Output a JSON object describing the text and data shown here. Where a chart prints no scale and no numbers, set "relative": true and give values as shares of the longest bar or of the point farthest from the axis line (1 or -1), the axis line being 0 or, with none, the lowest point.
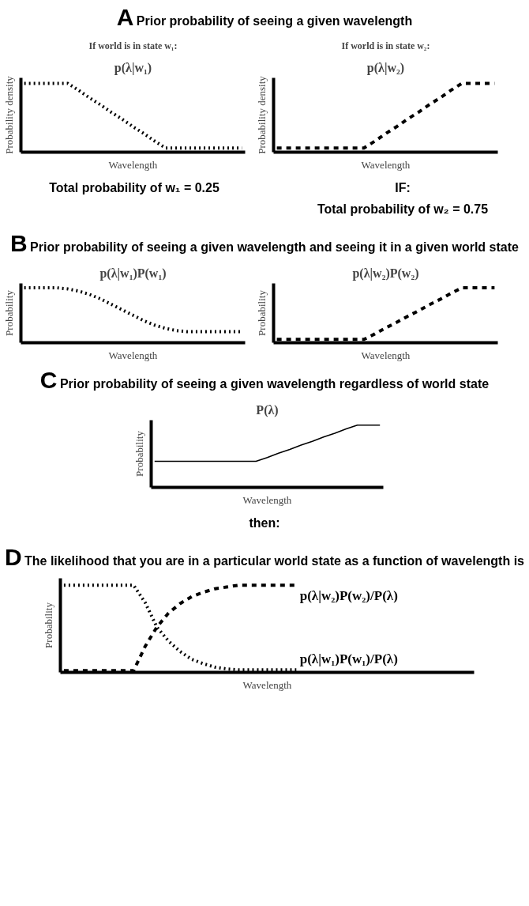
{
  "chart_data": [
    {
      "type": "line",
      "relative": true,
      "title": "p(λ|w₁)",
      "subtitle": "If world is in state w₁:",
      "xlabel": "Wavelength",
      "ylabel": "Probability density",
      "annotations": [
        "A",
        "Prior probability of seeing a given wavelength",
        "Total probability of w₁ = 0.25"
      ],
      "categories": [
        null,
        null,
        null,
        null,
        null,
        null,
        null,
        null,
        null,
        null,
        null,
        null,
        null,
        null,
        null,
        null,
        null,
        null,
        null,
        null,
        null
      ],
      "tick_labels": false,
      "grid": false,
      "series": [
        {
          "color": "#000000",
          "line_style": "dotted",
          "values": [
            1,
            1,
            1,
            1,
            1,
            0.9,
            0.79,
            0.69,
            0.58,
            0.48,
            0.37,
            0.27,
            0.16,
            0.06,
            0.06,
            0.06,
            0.06,
            0.06,
            0.06,
            0.06,
            0.06
          ]
        }
      ]
    },
    {
      "type": "line",
      "relative": true,
      "title": "p(λ|w₂)",
      "subtitle": "If world is in state w₂:",
      "xlabel": "Wavelength",
      "ylabel": "Probability density",
      "annotations": [
        "IF:",
        "Total probability of w₂ = 0.75"
      ],
      "categories": [
        null,
        null,
        null,
        null,
        null,
        null,
        null,
        null,
        null,
        null,
        null,
        null,
        null,
        null,
        null,
        null,
        null,
        null,
        null,
        null,
        null
      ],
      "tick_labels": false,
      "grid": false,
      "series": [
        {
          "color": "#000000",
          "line_style": "dashed",
          "values": [
            0.06,
            0.06,
            0.06,
            0.06,
            0.06,
            0.06,
            0.06,
            0.06,
            0.06,
            0.16,
            0.27,
            0.37,
            0.48,
            0.58,
            0.69,
            0.79,
            0.9,
            1,
            1,
            1,
            1
          ]
        }
      ]
    },
    {
      "type": "line",
      "relative": true,
      "title": "p(λ|w₁)P(w₁)",
      "xlabel": "Wavelength",
      "ylabel": "Probability",
      "annotations": [
        "B",
        "Prior probability of seeing a given wavelength and seeing it in a given world state"
      ],
      "categories": [
        null,
        null,
        null,
        null,
        null,
        null,
        null,
        null,
        null,
        null,
        null,
        null,
        null,
        null,
        null,
        null,
        null,
        null,
        null,
        null,
        null
      ],
      "tick_labels": false,
      "grid": false,
      "series": [
        {
          "color": "#000000",
          "line_style": "dotted",
          "values": [
            1,
            1,
            1,
            1,
            0.98,
            0.94,
            0.88,
            0.8,
            0.7,
            0.6,
            0.5,
            0.4,
            0.32,
            0.26,
            0.22,
            0.2,
            0.2,
            0.2,
            0.2,
            0.2,
            0.2
          ]
        }
      ]
    },
    {
      "type": "line",
      "relative": true,
      "title": "p(λ|w₂)P(w₂)",
      "xlabel": "Wavelength",
      "ylabel": "Probability",
      "categories": [
        null,
        null,
        null,
        null,
        null,
        null,
        null,
        null,
        null,
        null,
        null,
        null,
        null,
        null,
        null,
        null,
        null,
        null,
        null,
        null,
        null
      ],
      "tick_labels": false,
      "grid": false,
      "series": [
        {
          "color": "#000000",
          "line_style": "dashed",
          "values": [
            0.06,
            0.06,
            0.06,
            0.06,
            0.06,
            0.06,
            0.06,
            0.06,
            0.06,
            0.16,
            0.27,
            0.37,
            0.48,
            0.58,
            0.69,
            0.79,
            0.9,
            1,
            1,
            1,
            1
          ]
        }
      ]
    },
    {
      "type": "line",
      "relative": true,
      "title": "P(λ)",
      "xlabel": "Wavelength",
      "ylabel": "Probability",
      "annotations": [
        "C",
        "Prior probability of seeing a given wavelength regardless of world state",
        "then:"
      ],
      "categories": [
        null,
        null,
        null,
        null,
        null,
        null,
        null,
        null,
        null,
        null,
        null,
        null,
        null,
        null,
        null,
        null,
        null,
        null,
        null,
        null,
        null
      ],
      "tick_labels": false,
      "grid": false,
      "series": [
        {
          "color": "#000000",
          "line_style": "solid",
          "values": [
            0.42,
            0.42,
            0.42,
            0.42,
            0.42,
            0.42,
            0.42,
            0.42,
            0.42,
            0.42,
            0.48,
            0.55,
            0.61,
            0.68,
            0.74,
            0.81,
            0.87,
            0.94,
            1,
            1,
            1
          ]
        }
      ]
    },
    {
      "type": "line",
      "relative": true,
      "xlabel": "Wavelength",
      "ylabel": "Probability",
      "annotations": [
        "D",
        "The likelihood that you are in a particular world state as a function of wavelength is"
      ],
      "categories": [
        null,
        null,
        null,
        null,
        null,
        null,
        null,
        null,
        null,
        null,
        null,
        null,
        null,
        null,
        null,
        null,
        null,
        null,
        null,
        null,
        null
      ],
      "tick_labels": false,
      "grid": false,
      "series": [
        {
          "name": "p(λ|w₂)P(w₂)/P(λ)",
          "color": "#000000",
          "line_style": "dashed",
          "values": [
            0.02,
            0.02,
            0.02,
            0.02,
            0.02,
            0.02,
            0.02,
            0.3,
            0.52,
            0.68,
            0.79,
            0.87,
            0.92,
            0.96,
            0.98,
            1,
            1,
            1,
            1,
            1,
            1
          ]
        },
        {
          "name": "p(λ|w₁)P(w₁)/P(λ)",
          "color": "#000000",
          "line_style": "dotted",
          "values": [
            1,
            1,
            1,
            1,
            1,
            1,
            1,
            0.8,
            0.52,
            0.36,
            0.24,
            0.15,
            0.1,
            0.06,
            0.04,
            0.03,
            0.03,
            0.03,
            0.03,
            0.03,
            0.03
          ]
        }
      ]
    }
  ]
}
